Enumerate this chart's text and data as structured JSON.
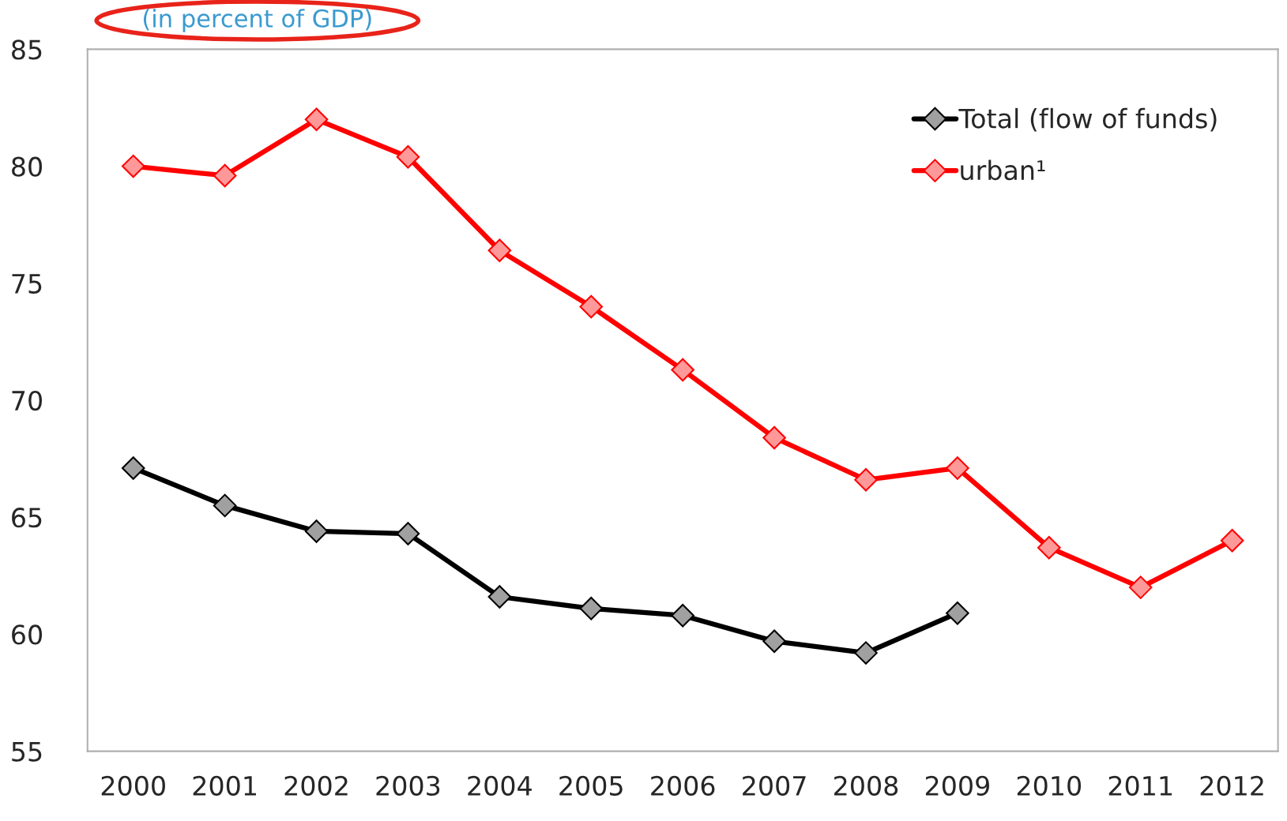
{
  "chart_data": {
    "type": "line",
    "subtitle": "(in percent of GDP)",
    "categories": [
      "2000",
      "2001",
      "2002",
      "2003",
      "2004",
      "2005",
      "2006",
      "2007",
      "2008",
      "2009",
      "2010",
      "2011",
      "2012"
    ],
    "series": [
      {
        "name": "Total (flow of funds)",
        "color": "#000000",
        "values": [
          67.1,
          65.5,
          64.4,
          64.3,
          61.6,
          61.1,
          60.8,
          59.7,
          59.2,
          60.9,
          null,
          null,
          null
        ]
      },
      {
        "name": "urban¹",
        "color": "#ff0000",
        "values": [
          80.0,
          79.6,
          82.0,
          80.4,
          76.4,
          74.0,
          71.3,
          68.4,
          66.6,
          67.1,
          63.7,
          62.0,
          64.0
        ]
      }
    ],
    "ylim": [
      55,
      85
    ],
    "yticks": [
      55,
      60,
      65,
      70,
      75,
      80,
      85
    ],
    "grid": false,
    "legend": "top right",
    "marker": "diamond",
    "line_style": "solid"
  }
}
